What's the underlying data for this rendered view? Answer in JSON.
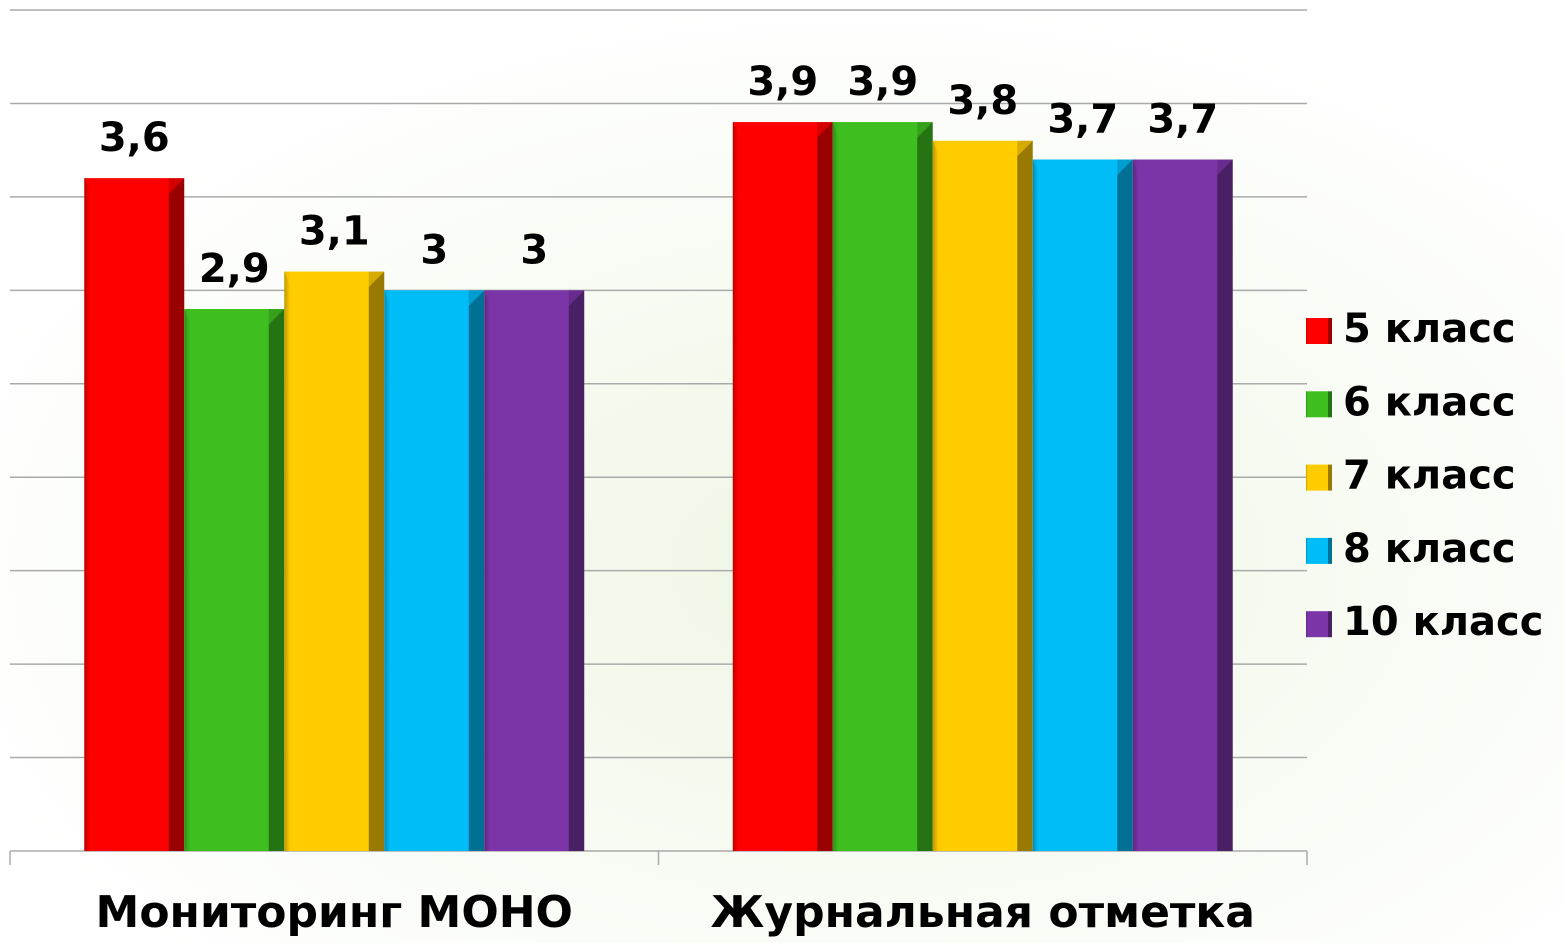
{
  "chart_data": {
    "type": "bar",
    "categories": [
      "Мониторинг МОНО",
      "Журнальная отметка"
    ],
    "series": [
      {
        "name": "5 класс",
        "color": "#ff0000",
        "values": [
          3.6,
          3.9
        ],
        "value_labels": [
          "3,6",
          "3,9"
        ]
      },
      {
        "name": "6 класс",
        "color": "#3fbf1f",
        "values": [
          2.9,
          3.9
        ],
        "value_labels": [
          "2,9",
          "3,9"
        ]
      },
      {
        "name": "7 класс",
        "color": "#ffcc00",
        "values": [
          3.1,
          3.8
        ],
        "value_labels": [
          "3,1",
          "3,8"
        ]
      },
      {
        "name": "8 класс",
        "color": "#00bdf8",
        "values": [
          3,
          3.7
        ],
        "value_labels": [
          "3",
          "3,7"
        ]
      },
      {
        "name": "10 класс",
        "color": "#7b35a8",
        "values": [
          3,
          3.7
        ],
        "value_labels": [
          "3",
          "3,7"
        ]
      }
    ],
    "ylim": [
      0,
      4.5
    ],
    "yticks": [
      0,
      0.5,
      1,
      1.5,
      2,
      2.5,
      3,
      3.5,
      4,
      4.5
    ],
    "grid": true,
    "legend": "right"
  }
}
